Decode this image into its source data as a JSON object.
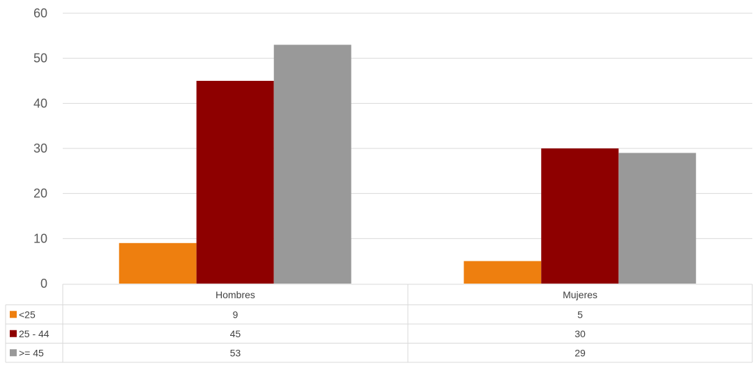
{
  "chart_data": {
    "type": "bar",
    "categories": [
      "Hombres",
      "Mujeres"
    ],
    "series": [
      {
        "name": "<25",
        "values": [
          9,
          5
        ],
        "color": "#EE7F0F"
      },
      {
        "name": "25 - 44",
        "values": [
          45,
          30
        ],
        "color": "#8E0000"
      },
      {
        "name": ">= 45",
        "values": [
          53,
          29
        ],
        "color": "#999999"
      }
    ],
    "ylim": [
      0,
      60
    ],
    "yticks": [
      0,
      10,
      20,
      30,
      40,
      50,
      60
    ],
    "grid": true,
    "legend": "data-table"
  }
}
